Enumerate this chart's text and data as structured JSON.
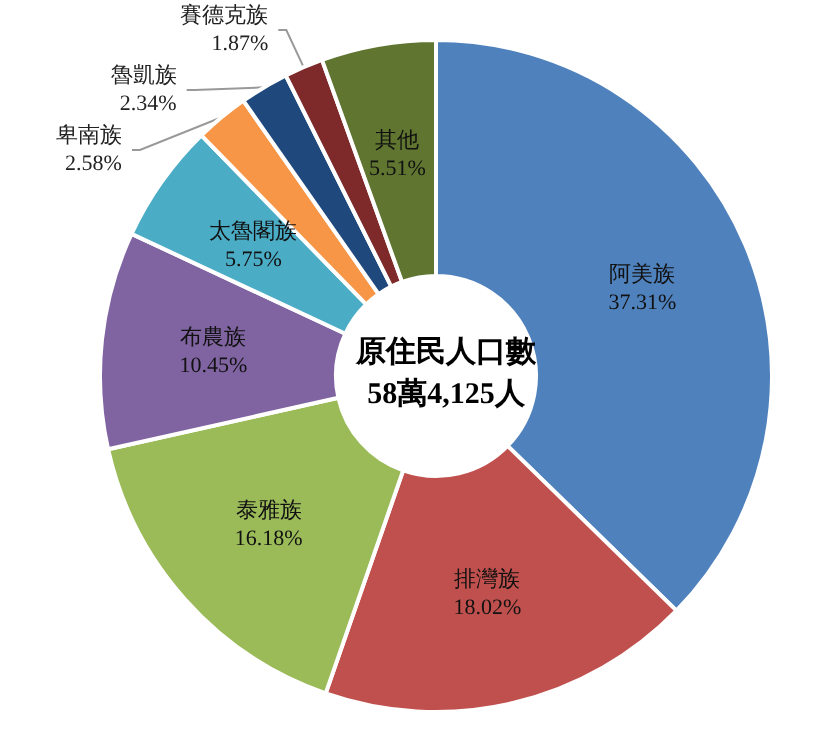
{
  "chart_data": {
    "type": "donut",
    "title": "原住民人口數",
    "subtitle": "58萬4,125人",
    "categories": [
      "阿美族",
      "排灣族",
      "泰雅族",
      "布農族",
      "太魯閣族",
      "卑南族",
      "魯凱族",
      "賽德克族",
      "其他"
    ],
    "values": [
      37.31,
      18.02,
      16.18,
      10.45,
      5.75,
      2.58,
      2.34,
      1.87,
      5.51
    ],
    "value_labels": [
      "37.31%",
      "18.02%",
      "16.18%",
      "10.45%",
      "5.75%",
      "2.58%",
      "2.34%",
      "1.87%",
      "5.51%"
    ],
    "colors": [
      "#4f81bd",
      "#c0504d",
      "#9bbb59",
      "#8064a2",
      "#4bacc6",
      "#f79646",
      "#1f497d",
      "#7f2a2a",
      "#5f7530"
    ],
    "legend": false
  }
}
